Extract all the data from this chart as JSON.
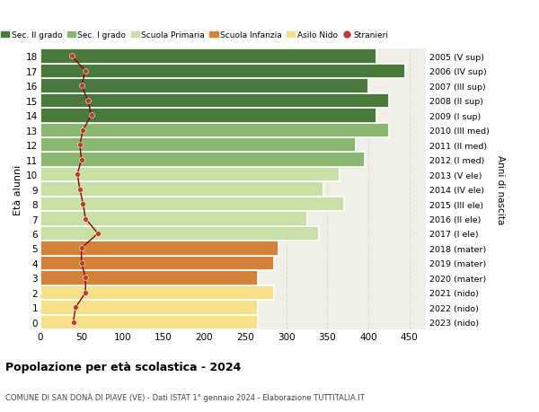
{
  "ages": [
    0,
    1,
    2,
    3,
    4,
    5,
    6,
    7,
    8,
    9,
    10,
    11,
    12,
    13,
    14,
    15,
    16,
    17,
    18
  ],
  "bar_values": [
    265,
    265,
    285,
    265,
    285,
    290,
    340,
    325,
    370,
    345,
    365,
    395,
    385,
    425,
    410,
    425,
    400,
    445,
    410
  ],
  "stranieri_values": [
    40,
    43,
    55,
    55,
    50,
    50,
    70,
    55,
    52,
    48,
    45,
    50,
    48,
    52,
    62,
    58,
    50,
    55,
    38
  ],
  "bar_colors": [
    "#f7e08a",
    "#f7e08a",
    "#f7e08a",
    "#d4813a",
    "#d4813a",
    "#d4813a",
    "#c8dfa5",
    "#c8dfa5",
    "#c8dfa5",
    "#c8dfa5",
    "#c8dfa5",
    "#8ab870",
    "#8ab870",
    "#8ab870",
    "#4a7a3a",
    "#4a7a3a",
    "#4a7a3a",
    "#4a7a3a",
    "#4a7a3a"
  ],
  "right_labels": [
    "2023 (nido)",
    "2022 (nido)",
    "2021 (nido)",
    "2020 (mater)",
    "2019 (mater)",
    "2018 (mater)",
    "2017 (I ele)",
    "2016 (II ele)",
    "2015 (III ele)",
    "2014 (IV ele)",
    "2013 (V ele)",
    "2012 (I med)",
    "2011 (II med)",
    "2010 (III med)",
    "2009 (I sup)",
    "2008 (II sup)",
    "2007 (III sup)",
    "2006 (IV sup)",
    "2005 (V sup)"
  ],
  "legend_labels": [
    "Sec. II grado",
    "Sec. I grado",
    "Scuola Primaria",
    "Scuola Infanzia",
    "Asilo Nido",
    "Stranieri"
  ],
  "legend_colors": [
    "#4a7a3a",
    "#8ab870",
    "#c8dfa5",
    "#d4813a",
    "#f7e08a",
    "#c0392b"
  ],
  "ylabel": "Età alunni",
  "right_ylabel": "Anni di nascita",
  "title": "Popolazione per età scolastica - 2024",
  "subtitle": "COMUNE DI SAN DONÀ DI PIAVE (VE) - Dati ISTAT 1° gennaio 2024 - Elaborazione TUTTITALIA.IT",
  "xlim": [
    0,
    470
  ],
  "xticks": [
    0,
    50,
    100,
    150,
    200,
    250,
    300,
    350,
    400,
    450
  ],
  "bg_color": "#ffffff",
  "plot_bg_color": "#f0f0e8",
  "grid_color": "#ddddcc",
  "stranieri_line_color": "#8b0000",
  "stranieri_dot_color": "#c0392b"
}
